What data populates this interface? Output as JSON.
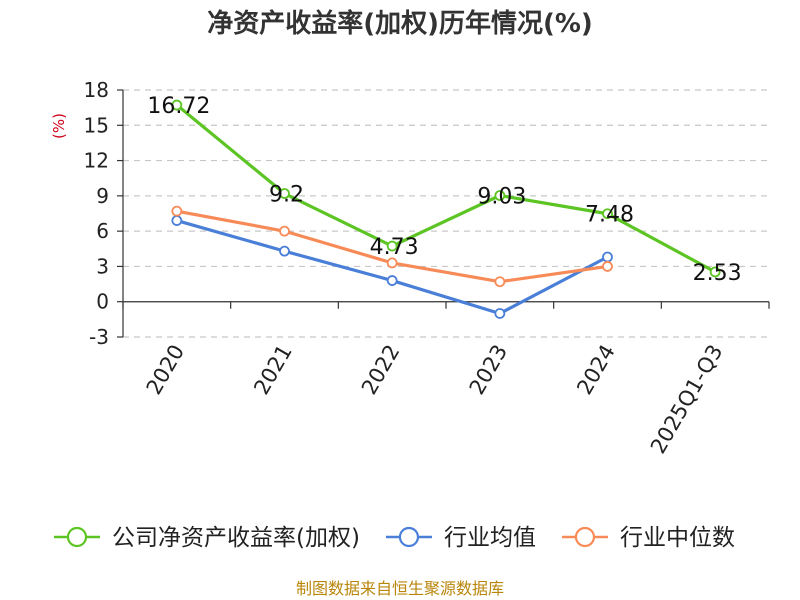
{
  "chart_data": {
    "type": "line",
    "title": "净资产收益率(加权)历年情况(%)",
    "ylabel": "(%)",
    "categories": [
      "2020",
      "2021",
      "2022",
      "2023",
      "2024",
      "2025Q1-Q3"
    ],
    "ylim": [
      -3,
      18
    ],
    "yticks": [
      -3,
      0,
      3,
      6,
      9,
      12,
      15,
      18
    ],
    "grid": true,
    "legend_position": "bottom",
    "series": [
      {
        "name": "公司净资产收益率(加权)",
        "color": "#5cc524",
        "values": [
          16.72,
          9.2,
          4.73,
          9.03,
          7.48,
          2.53
        ],
        "data_labels": [
          "16.72",
          "9.2",
          "4.73",
          "9.03",
          "7.48",
          "2.53"
        ]
      },
      {
        "name": "行业均值",
        "color": "#4a7fd8",
        "values": [
          6.9,
          4.3,
          1.8,
          -1.0,
          3.8,
          null
        ]
      },
      {
        "name": "行业中位数",
        "color": "#f78b58",
        "values": [
          7.7,
          6.0,
          3.3,
          1.7,
          3.0,
          null
        ]
      }
    ]
  },
  "source": "制图数据来自恒生聚源数据库"
}
